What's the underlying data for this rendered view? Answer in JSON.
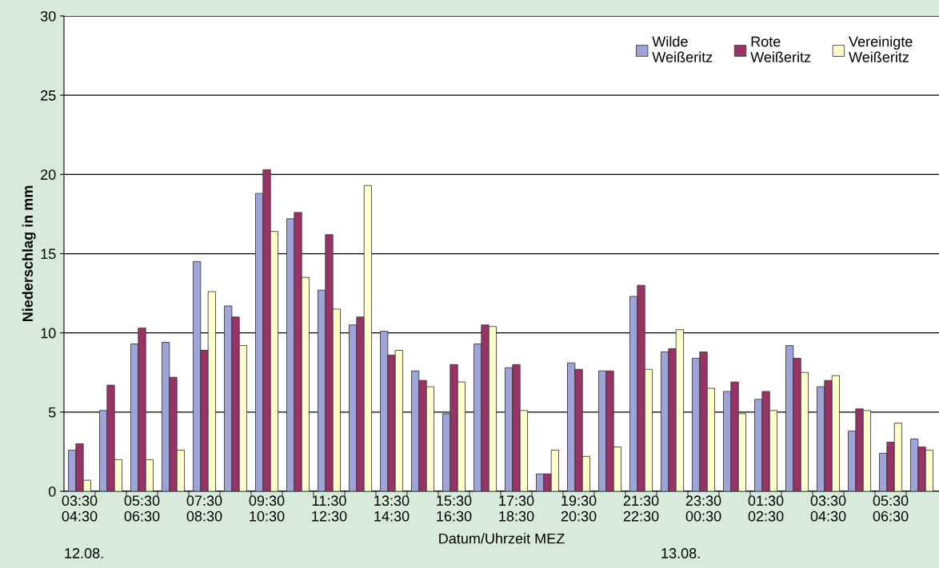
{
  "chart_data": {
    "type": "bar",
    "ylabel": "Niederschlag in mm",
    "xlabel": "Datum/Uhrzeit MEZ",
    "categories": [
      "03:30\n04:30",
      null,
      "05:30\n06:30",
      null,
      "07:30\n08:30",
      null,
      "09:30\n10:30",
      null,
      "11:30\n12:30",
      null,
      "13:30\n14:30",
      null,
      "15:30\n16:30",
      null,
      "17:30\n18:30",
      null,
      "19:30\n20:30",
      null,
      "21:30\n22:30",
      null,
      "23:30\n00:30",
      null,
      "01:30\n02:30",
      null,
      "03:30\n04:30",
      null,
      "05:30\n06:30",
      null
    ],
    "series": [
      {
        "name": "Wilde\nWeißeritz",
        "color": "#9ea3d8",
        "values": [
          2.6,
          5.1,
          9.3,
          9.4,
          14.5,
          11.7,
          18.8,
          17.2,
          12.7,
          10.5,
          10.1,
          7.6,
          4.9,
          9.3,
          7.8,
          1.1,
          8.1,
          7.6,
          12.3,
          8.8,
          8.4,
          6.3,
          5.8,
          9.2,
          6.6,
          3.8,
          2.4,
          3.3
        ]
      },
      {
        "name": "Rote\nWeißeritz",
        "color": "#993366",
        "values": [
          3.0,
          6.7,
          10.3,
          7.2,
          8.9,
          11.0,
          20.3,
          17.6,
          16.2,
          11.0,
          8.6,
          7.0,
          8.0,
          10.5,
          8.0,
          1.1,
          7.7,
          7.6,
          13.0,
          9.0,
          8.8,
          6.9,
          6.3,
          8.4,
          7.0,
          5.2,
          3.1,
          2.8
        ]
      },
      {
        "name": "Vereinigte\nWeißeritz",
        "color": "#ffffcc",
        "values": [
          0.7,
          2.0,
          2.0,
          2.6,
          12.6,
          9.2,
          16.4,
          13.5,
          11.5,
          19.3,
          8.9,
          6.6,
          6.9,
          10.4,
          5.1,
          2.6,
          2.2,
          2.8,
          7.7,
          10.2,
          6.5,
          4.9,
          5.1,
          7.5,
          7.3,
          5.1,
          4.3,
          2.6
        ]
      }
    ],
    "ylim": [
      0,
      30
    ],
    "yticks": [
      0,
      5,
      10,
      15,
      20,
      25,
      30
    ],
    "grid": "y",
    "legend": "top right",
    "annotations": [
      "12.08.",
      "13.08."
    ]
  }
}
